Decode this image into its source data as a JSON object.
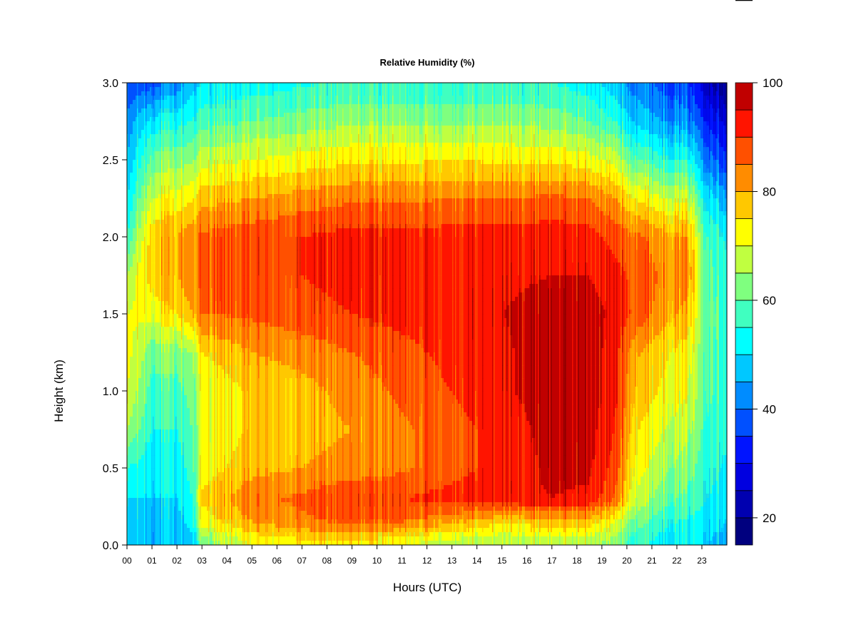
{
  "chart_data": {
    "type": "heatmap",
    "title": "Relative Humidity (%)",
    "xlabel": "Hours (UTC)",
    "ylabel": "Height (km)",
    "x_range": [
      0,
      24
    ],
    "y_range": [
      0,
      3
    ],
    "x_ticks": [
      "00",
      "01",
      "02",
      "03",
      "04",
      "05",
      "06",
      "07",
      "08",
      "09",
      "10",
      "11",
      "12",
      "13",
      "14",
      "15",
      "16",
      "17",
      "18",
      "19",
      "20",
      "21",
      "22",
      "23"
    ],
    "y_ticks": [
      "0.0",
      "0.5",
      "1.0",
      "1.5",
      "2.0",
      "2.5",
      "3.0"
    ],
    "colorbar": {
      "range": [
        15,
        100
      ],
      "ticks": [
        "20",
        "40",
        "60",
        "80",
        "100"
      ],
      "levels": [
        15,
        20,
        25,
        30,
        35,
        40,
        45,
        50,
        55,
        60,
        65,
        70,
        75,
        80,
        85,
        90,
        95,
        100
      ],
      "colors": [
        "#00007f",
        "#0000b0",
        "#0000e0",
        "#0014ff",
        "#0050ff",
        "#008cff",
        "#00c8ff",
        "#00ffff",
        "#40ffc0",
        "#7fff7f",
        "#c0ff40",
        "#ffff00",
        "#ffc800",
        "#ff8c00",
        "#ff5000",
        "#ff1400",
        "#c00000",
        "#800000"
      ]
    },
    "x_hours": [
      0,
      1,
      2,
      2.6,
      3,
      5,
      7,
      9,
      11,
      13,
      15,
      17,
      18.5,
      19.5,
      20.5,
      21.5,
      22.5,
      23,
      24
    ],
    "y_heights_km": [
      0.0,
      0.15,
      0.3,
      0.5,
      0.75,
      1.0,
      1.25,
      1.5,
      1.75,
      2.0,
      2.25,
      2.5,
      2.75,
      3.0
    ],
    "values_rh_percent": [
      [
        48,
        48,
        50,
        55,
        65,
        70,
        72,
        70,
        65,
        55,
        50,
        45,
        42,
        35
      ],
      [
        45,
        48,
        50,
        52,
        55,
        58,
        62,
        72,
        78,
        78,
        70,
        62,
        52,
        38
      ],
      [
        45,
        48,
        50,
        52,
        55,
        58,
        63,
        75,
        80,
        80,
        72,
        63,
        53,
        42
      ],
      [
        48,
        52,
        55,
        57,
        60,
        62,
        65,
        80,
        84,
        84,
        74,
        64,
        55,
        48
      ],
      [
        60,
        72,
        76,
        72,
        70,
        70,
        75,
        85,
        86,
        86,
        78,
        68,
        58,
        50
      ],
      [
        70,
        80,
        84,
        78,
        76,
        76,
        80,
        86,
        88,
        88,
        80,
        70,
        60,
        52
      ],
      [
        72,
        84,
        86,
        80,
        78,
        78,
        82,
        88,
        90,
        90,
        82,
        72,
        62,
        54
      ],
      [
        72,
        86,
        90,
        82,
        80,
        82,
        85,
        90,
        92,
        92,
        84,
        74,
        64,
        56
      ],
      [
        70,
        85,
        90,
        84,
        84,
        86,
        88,
        92,
        92,
        92,
        84,
        74,
        64,
        55
      ],
      [
        66,
        82,
        92,
        88,
        88,
        90,
        92,
        94,
        93,
        92,
        85,
        75,
        64,
        56
      ],
      [
        65,
        75,
        94,
        92,
        92,
        94,
        94,
        95,
        94,
        92,
        85,
        74,
        64,
        55
      ],
      [
        66,
        78,
        95,
        96,
        97,
        98,
        98,
        97,
        95,
        93,
        86,
        74,
        63,
        55
      ],
      [
        66,
        78,
        94,
        96,
        97,
        98,
        98,
        97,
        95,
        92,
        85,
        72,
        60,
        52
      ],
      [
        62,
        70,
        85,
        88,
        90,
        92,
        92,
        94,
        92,
        88,
        80,
        68,
        55,
        47
      ],
      [
        56,
        62,
        68,
        72,
        75,
        78,
        80,
        88,
        88,
        86,
        74,
        60,
        48,
        42
      ],
      [
        52,
        56,
        62,
        66,
        70,
        74,
        76,
        82,
        84,
        82,
        70,
        56,
        45,
        38
      ],
      [
        50,
        54,
        58,
        62,
        66,
        70,
        72,
        78,
        82,
        80,
        68,
        54,
        42,
        35
      ],
      [
        50,
        53,
        56,
        58,
        60,
        62,
        62,
        64,
        64,
        62,
        55,
        45,
        36,
        28
      ],
      [
        48,
        50,
        52,
        54,
        56,
        58,
        58,
        58,
        56,
        54,
        46,
        36,
        28,
        20
      ]
    ]
  }
}
